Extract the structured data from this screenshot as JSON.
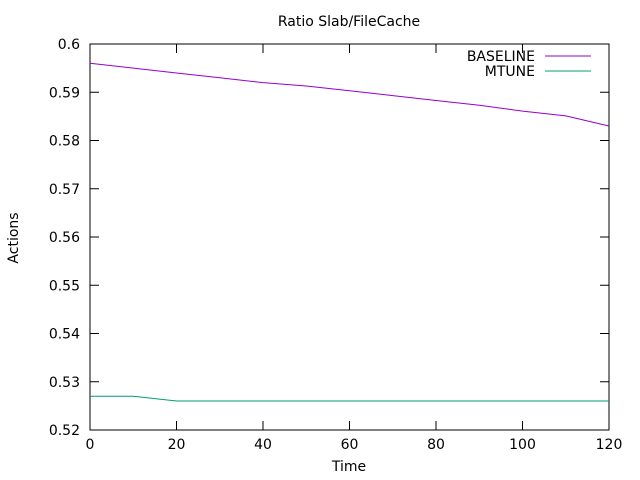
{
  "chart_data": {
    "type": "line",
    "title": "Ratio Slab/FileCache",
    "xlabel": "Time",
    "ylabel": "Actions",
    "xlim": [
      0,
      120
    ],
    "ylim": [
      0.52,
      0.6
    ],
    "x_ticks": [
      "0",
      "20",
      "40",
      "60",
      "80",
      "100",
      "120"
    ],
    "y_ticks": [
      "0.52",
      "0.53",
      "0.54",
      "0.55",
      "0.56",
      "0.57",
      "0.58",
      "0.59",
      "0.6"
    ],
    "grid": false,
    "legend_position": "top-right",
    "series": [
      {
        "name": "BASELINE",
        "color": "#9400d3",
        "x": [
          0,
          10,
          20,
          30,
          40,
          50,
          60,
          70,
          80,
          90,
          100,
          110,
          120
        ],
        "y": [
          0.596,
          0.595,
          0.594,
          0.593,
          0.592,
          0.5913,
          0.5903,
          0.5893,
          0.5883,
          0.5873,
          0.5861,
          0.5851,
          0.583
        ]
      },
      {
        "name": "MTUNE",
        "color": "#009e73",
        "x": [
          0,
          10,
          20,
          30,
          40,
          50,
          60,
          70,
          80,
          90,
          100,
          110,
          120
        ],
        "y": [
          0.527,
          0.527,
          0.526,
          0.526,
          0.526,
          0.526,
          0.526,
          0.526,
          0.526,
          0.526,
          0.526,
          0.526,
          0.526
        ]
      }
    ]
  }
}
